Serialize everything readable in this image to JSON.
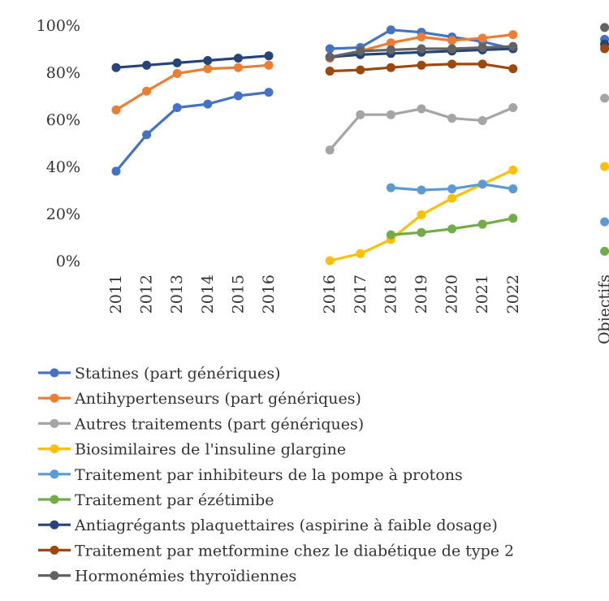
{
  "chart_data": {
    "type": "line",
    "title": "",
    "xlabel": "",
    "ylabel": "",
    "ylim": [
      0,
      100
    ],
    "y_ticks": [
      "0%",
      "20%",
      "40%",
      "60%",
      "80%",
      "100%"
    ],
    "categories": [
      "2011",
      "2012",
      "2013",
      "2014",
      "2015",
      "2016",
      "",
      "2016",
      "2017",
      "2018",
      "2019",
      "2020",
      "2021",
      "2022",
      "",
      "",
      "Objectifs"
    ],
    "grid": false,
    "legend_position": "bottom",
    "series": [
      {
        "name": "Statines (part génériques)",
        "color": "#4472C4",
        "values": [
          38,
          53.5,
          65,
          66.5,
          70,
          71.5,
          null,
          90,
          90.5,
          98,
          97,
          95,
          93,
          90,
          null,
          null,
          94
        ]
      },
      {
        "name": "Antihypertenseurs (part génériques)",
        "color": "#ED7D31",
        "values": [
          64,
          72,
          79.5,
          81.5,
          82,
          83,
          null,
          86,
          89,
          92.5,
          95,
          93.5,
          94.5,
          96,
          null,
          null,
          91
        ]
      },
      {
        "name": "Autres traitements (part génériques)",
        "color": "#A5A5A5",
        "values": [
          null,
          null,
          null,
          null,
          null,
          null,
          null,
          47,
          62,
          62,
          64.5,
          60.5,
          59.5,
          65,
          null,
          null,
          69
        ]
      },
      {
        "name": "Biosimilaires de l'insuline glargine",
        "color": "#FFC000",
        "values": [
          null,
          null,
          null,
          null,
          null,
          null,
          null,
          0,
          3,
          9,
          19.5,
          26.5,
          32.5,
          38.5,
          null,
          null,
          40
        ]
      },
      {
        "name": "Traitement par inhibiteurs de la pompe à protons",
        "color": "#5B9BD5",
        "values": [
          null,
          null,
          null,
          null,
          null,
          null,
          null,
          null,
          null,
          31,
          30,
          30.5,
          32.5,
          30.5,
          null,
          null,
          16.5
        ]
      },
      {
        "name": "Traitement par ézétimibe",
        "color": "#70AD47",
        "values": [
          null,
          null,
          null,
          null,
          null,
          null,
          null,
          null,
          null,
          11,
          12,
          13.5,
          15.5,
          18,
          null,
          null,
          4
        ]
      },
      {
        "name": "Antiagrégants plaquettaires (aspirine à faible dosage)",
        "color": "#264478",
        "values": [
          82,
          83,
          84,
          85,
          86,
          87,
          null,
          86.5,
          87.5,
          88,
          88.5,
          89,
          89.5,
          90,
          null,
          null,
          92
        ]
      },
      {
        "name": "Traitement par metformine chez le diabétique de type 2",
        "color": "#9E480E",
        "values": [
          null,
          null,
          null,
          null,
          null,
          null,
          null,
          80.5,
          81,
          82,
          83,
          83.5,
          83.5,
          81.5,
          null,
          null,
          90
        ]
      },
      {
        "name": "Hormonémies thyroïdiennes",
        "color": "#636363",
        "values": [
          null,
          null,
          null,
          null,
          null,
          null,
          null,
          86.5,
          89,
          89.5,
          90,
          90,
          90.5,
          91,
          null,
          null,
          99
        ]
      }
    ]
  }
}
